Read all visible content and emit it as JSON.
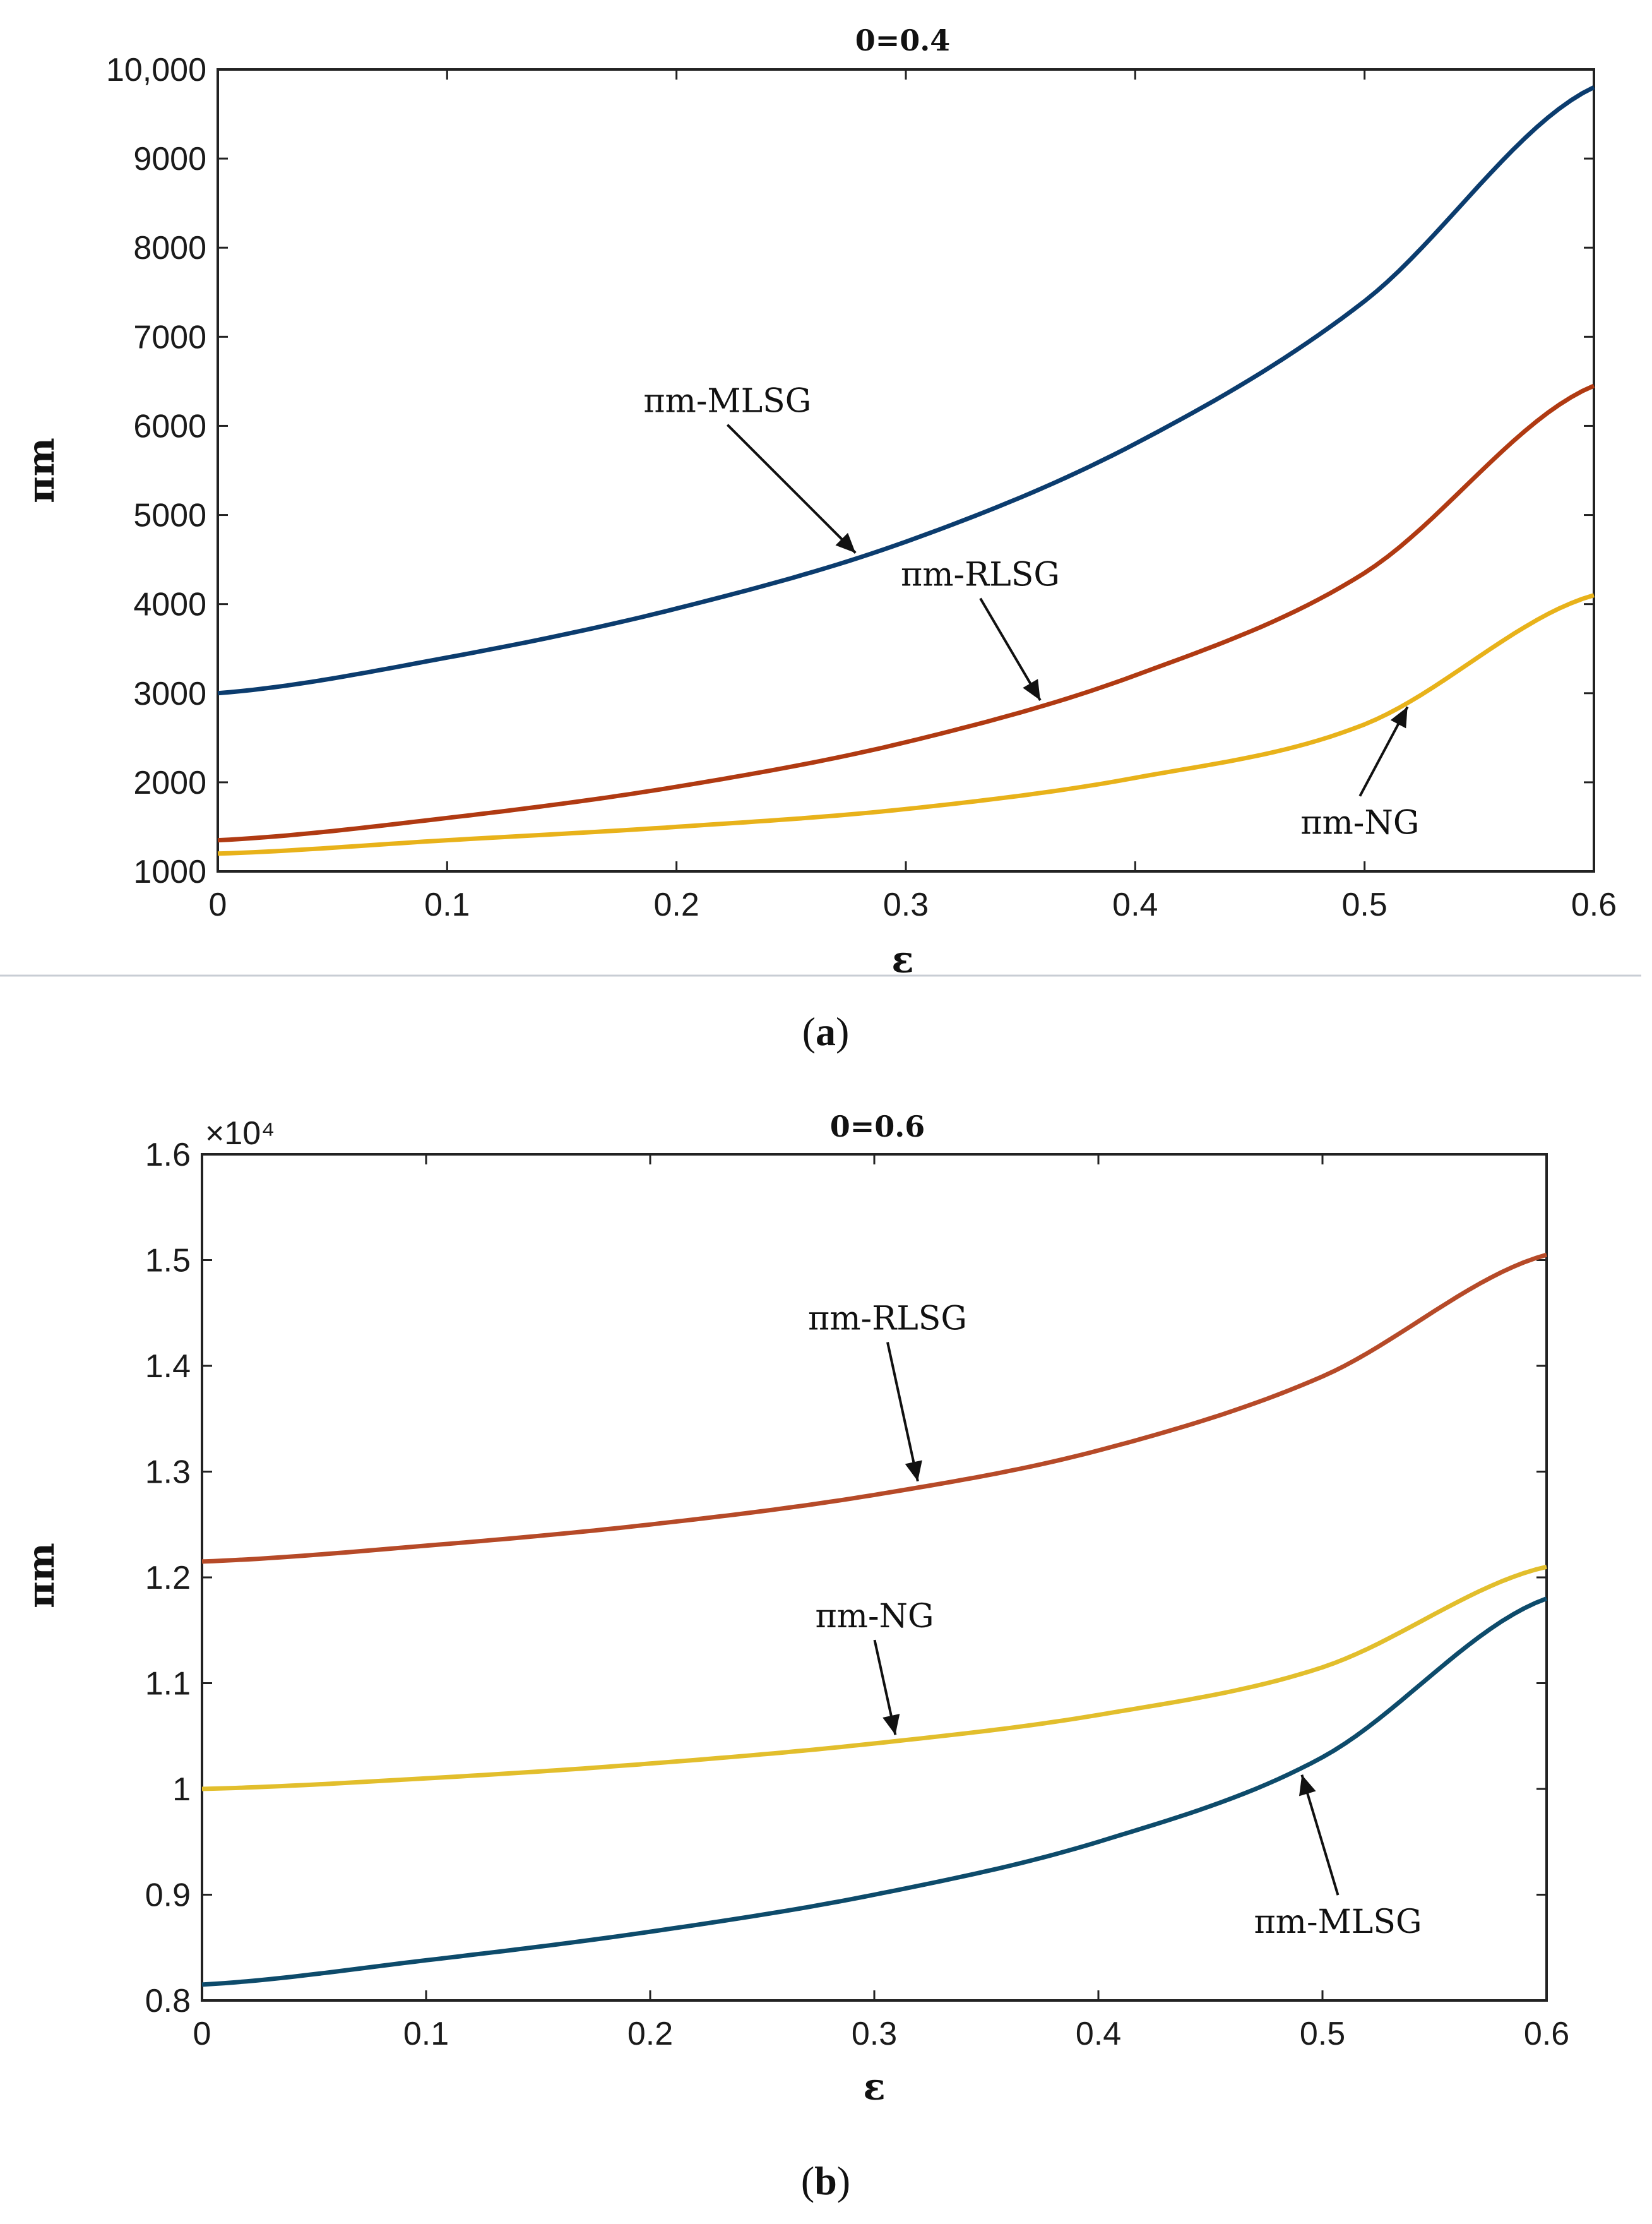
{
  "chart_data": [
    {
      "type": "line",
      "title": "0=0.4",
      "xlabel": "ε",
      "ylabel": "πm",
      "xlim": [
        0,
        0.6
      ],
      "ylim": [
        1000,
        10000
      ],
      "x_ticks": [
        "0",
        "0.1",
        "0.2",
        "0.3",
        "0.4",
        "0.5",
        "0.6"
      ],
      "y_ticks": [
        "1000",
        "2000",
        "3000",
        "4000",
        "5000",
        "6000",
        "7000",
        "8000",
        "9000",
        "10,000"
      ],
      "x": [
        0,
        0.1,
        0.2,
        0.3,
        0.4,
        0.5,
        0.6
      ],
      "series": [
        {
          "name": "πm-MLSG",
          "color": "#0b3c6e",
          "values": [
            3000,
            3400,
            3950,
            4700,
            5800,
            7400,
            9800
          ]
        },
        {
          "name": "πm-RLSG",
          "color": "#b03a12",
          "values": [
            1350,
            1600,
            1950,
            2450,
            3200,
            4350,
            6450
          ]
        },
        {
          "name": "πm-NG",
          "color": "#e8b21a",
          "values": [
            1200,
            1350,
            1500,
            1700,
            2050,
            2650,
            4100
          ]
        }
      ],
      "annotations": [
        {
          "text": "πm-MLSG",
          "series": "πm-MLSG",
          "x": 0.28
        },
        {
          "text": "πm-RLSG",
          "series": "πm-RLSG",
          "x": 0.36
        },
        {
          "text": "πm-NG",
          "series": "πm-NG",
          "x": 0.52
        }
      ],
      "caption": "a",
      "grid": false
    },
    {
      "type": "line",
      "title": "0=0.6",
      "xlabel": "ε",
      "ylabel": "πm",
      "y_multiplier": "×10⁴",
      "xlim": [
        0,
        0.6
      ],
      "ylim": [
        0.8,
        1.6
      ],
      "x_ticks": [
        "0",
        "0.1",
        "0.2",
        "0.3",
        "0.4",
        "0.5",
        "0.6"
      ],
      "y_ticks": [
        "0.8",
        "0.9",
        "1",
        "1.1",
        "1.2",
        "1.3",
        "1.4",
        "1.5",
        "1.6"
      ],
      "x": [
        0,
        0.1,
        0.2,
        0.3,
        0.4,
        0.5,
        0.6
      ],
      "series": [
        {
          "name": "πm-RLSG",
          "color": "#b64a28",
          "values": [
            1.215,
            1.23,
            1.25,
            1.278,
            1.32,
            1.39,
            1.505
          ]
        },
        {
          "name": "πm-NG",
          "color": "#e2be2c",
          "values": [
            1.0,
            1.01,
            1.024,
            1.043,
            1.07,
            1.115,
            1.21
          ]
        },
        {
          "name": "πm-MLSG",
          "color": "#0d4b6b",
          "values": [
            0.815,
            0.838,
            0.865,
            0.9,
            0.95,
            1.03,
            1.18
          ]
        }
      ],
      "annotations": [
        {
          "text": "πm-RLSG",
          "series": "πm-RLSG",
          "x": 0.32
        },
        {
          "text": "πm-NG",
          "series": "πm-NG",
          "x": 0.31
        },
        {
          "text": "πm-MLSG",
          "series": "πm-MLSG",
          "x": 0.49
        }
      ],
      "caption": "b",
      "grid": false
    }
  ]
}
